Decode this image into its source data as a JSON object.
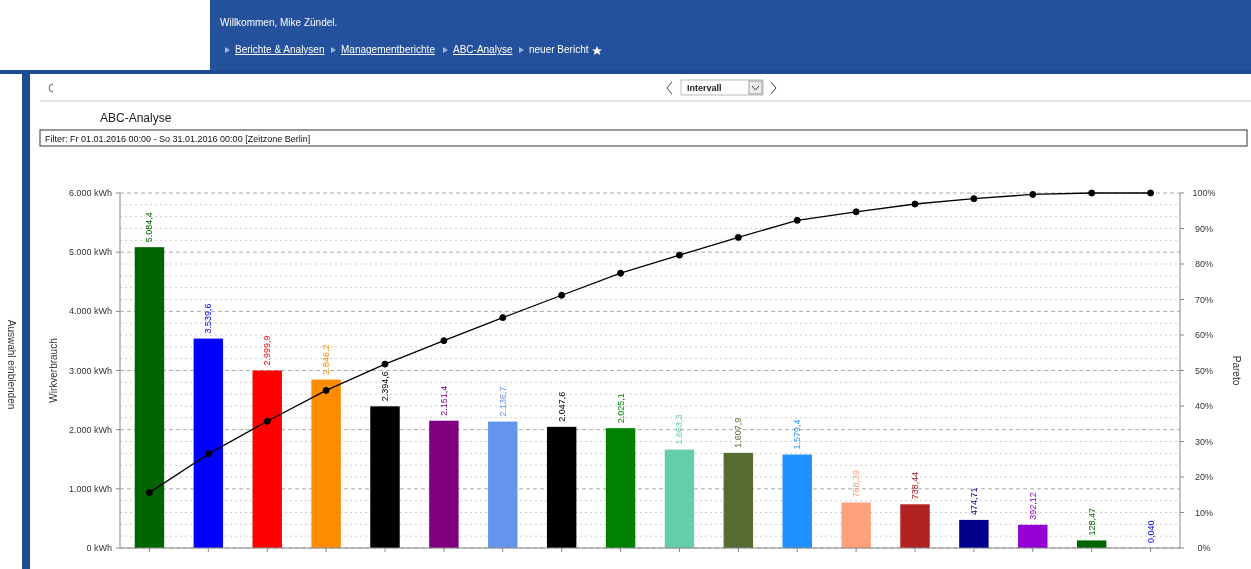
{
  "chart_data": {
    "type": "bar",
    "title": "ABC-Analyse",
    "subtitle": "Filter: Fr 01.01.2016 00:00 - So 31.01.2016 00:00 [Zeitzone Berlin]",
    "annotations": [
      "Willkommen, Mike Zündel.",
      "Berichte & Analysen",
      "Managementberichte",
      "ABC-Analyse",
      "neuer Bericht",
      "Intervall",
      "Auswahl einblenden"
    ],
    "ylabel": "Wirkverbrauch",
    "y2label": "Pareto",
    "categories": [
      null,
      null,
      null,
      null,
      null,
      null,
      null,
      null,
      null,
      null,
      null,
      null,
      null,
      null,
      null,
      null,
      null,
      null
    ],
    "series": [
      {
        "values": [
          5084.4,
          3539.6,
          2999.9,
          2846.2,
          2394.6,
          2151.4,
          2136.7,
          2047.6,
          2025.1,
          1663.3,
          1607.9,
          1579.4,
          768.39,
          738.44,
          474.71,
          392.12,
          128.47,
          0.04
        ],
        "colors": [
          "#006400",
          "#0000ff",
          "#ff0000",
          "#ff8c00",
          "#000000",
          "#800080",
          "#6495ed",
          "#000000",
          "#008000",
          "#66cdaa",
          "#556b2f",
          "#1e90ff",
          "#ffa07a",
          "#b22222",
          "#00008b",
          "#9400d3",
          "#006400",
          "#0000ff"
        ],
        "value_labels": [
          "5.084,4",
          "3.539,6",
          "2.999,9",
          "2.846,2",
          "2.394,6",
          "2.151,4",
          "2.136,7",
          "2.047,6",
          "2.025,1",
          "1.663,3",
          "1.607,9",
          "1.579,4",
          "768,39",
          "738,44",
          "474,71",
          "392,12",
          "128,47",
          "0,040"
        ]
      },
      {
        "type": "line",
        "axis": "y2",
        "color": "#000000",
        "values": [
          15.6,
          26.5,
          35.7,
          44.4,
          51.8,
          58.4,
          64.9,
          71.2,
          77.4,
          82.5,
          87.5,
          92.3,
          94.7,
          96.9,
          98.4,
          99.6,
          100,
          100
        ]
      }
    ],
    "ylim": [
      0,
      6000
    ],
    "yticks": [
      {
        "value": 0,
        "label": "0 kWh"
      },
      {
        "value": 1000,
        "label": "1.000 kWh"
      },
      {
        "value": 2000,
        "label": "2.000 kWh"
      },
      {
        "value": 3000,
        "label": "3.000 kWh"
      },
      {
        "value": 4000,
        "label": "4.000 kWh"
      },
      {
        "value": 5000,
        "label": "5.000 kWh"
      },
      {
        "value": 6000,
        "label": "6.000 kWh"
      }
    ],
    "y2lim": [
      0,
      100
    ],
    "y2ticks": [
      {
        "value": 0,
        "label": "0%"
      },
      {
        "value": 10,
        "label": "10%"
      },
      {
        "value": 20,
        "label": "20%"
      },
      {
        "value": 30,
        "label": "30%"
      },
      {
        "value": 40,
        "label": "40%"
      },
      {
        "value": 50,
        "label": "50%"
      },
      {
        "value": 60,
        "label": "60%"
      },
      {
        "value": 70,
        "label": "70%"
      },
      {
        "value": 80,
        "label": "80%"
      },
      {
        "value": 90,
        "label": "90%"
      },
      {
        "value": 100,
        "label": "100%"
      }
    ],
    "grid": "y",
    "marker": "circle"
  }
}
